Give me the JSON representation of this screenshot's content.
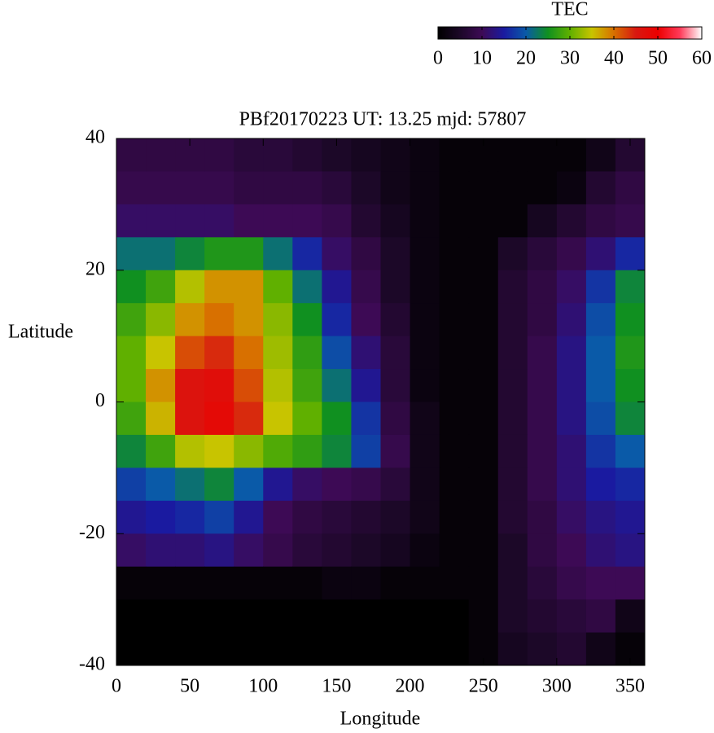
{
  "chart_data": {
    "type": "heatmap",
    "title": "PBf20170223  UT: 13.25  mjd: 57807",
    "xlabel": "Longitude",
    "ylabel": "Latitude",
    "colorbar_label": "TEC",
    "xlim": [
      0,
      360
    ],
    "ylim": [
      -40,
      40
    ],
    "xticks": [
      0,
      50,
      100,
      150,
      200,
      250,
      300,
      350
    ],
    "yticks": [
      -40,
      -20,
      0,
      20,
      40
    ],
    "zlim": [
      0,
      60
    ],
    "zticks": [
      0,
      10,
      20,
      30,
      40,
      50,
      60
    ],
    "colorscale": [
      "#000000",
      "#1c0828",
      "#3d0a55",
      "#1a1aa0",
      "#0a5aa8",
      "#109020",
      "#60b000",
      "#c8c400",
      "#d87000",
      "#d81810",
      "#ec0000",
      "#ff3a58",
      "#ffffff"
    ],
    "x": [
      10,
      30,
      50,
      70,
      90,
      110,
      130,
      150,
      170,
      190,
      210,
      230,
      250,
      270,
      290,
      310,
      330,
      350
    ],
    "y": [
      37.5,
      32.5,
      27.5,
      22.5,
      17.5,
      12.5,
      7.5,
      2.5,
      -2.5,
      -7.5,
      -12.5,
      -17.5,
      -22.5,
      -27.5,
      -32.5,
      -37.5
    ],
    "z": [
      [
        8,
        8,
        8,
        8,
        7,
        7,
        6,
        5,
        4,
        3,
        2,
        1,
        1,
        1,
        1,
        1,
        3,
        6
      ],
      [
        9,
        9,
        9,
        9,
        8,
        8,
        8,
        7,
        5,
        3,
        2,
        1,
        1,
        1,
        1,
        2,
        6,
        8
      ],
      [
        11,
        11,
        11,
        11,
        10,
        10,
        10,
        9,
        6,
        4,
        2,
        1,
        1,
        1,
        4,
        6,
        8,
        9
      ],
      [
        22,
        22,
        24,
        26,
        26,
        22,
        16,
        11,
        8,
        5,
        2,
        1,
        1,
        5,
        7,
        9,
        12,
        16
      ],
      [
        25,
        28,
        34,
        38,
        38,
        30,
        22,
        14,
        9,
        5,
        2,
        1,
        1,
        6,
        8,
        11,
        17,
        24
      ],
      [
        28,
        32,
        38,
        40,
        38,
        32,
        25,
        16,
        10,
        6,
        2,
        1,
        1,
        6,
        8,
        12,
        19,
        25
      ],
      [
        30,
        35,
        42,
        44,
        40,
        33,
        27,
        19,
        12,
        7,
        2,
        1,
        1,
        6,
        9,
        13,
        20,
        26
      ],
      [
        30,
        38,
        46,
        47,
        42,
        34,
        28,
        22,
        14,
        7,
        2,
        1,
        1,
        6,
        9,
        13,
        20,
        25
      ],
      [
        28,
        36,
        46,
        48,
        44,
        35,
        30,
        25,
        17,
        8,
        3,
        1,
        1,
        6,
        9,
        13,
        19,
        24
      ],
      [
        24,
        28,
        34,
        35,
        32,
        29,
        27,
        24,
        18,
        9,
        3,
        1,
        1,
        6,
        9,
        12,
        17,
        20
      ],
      [
        18,
        20,
        22,
        24,
        20,
        14,
        11,
        10,
        9,
        7,
        3,
        1,
        1,
        6,
        9,
        12,
        15,
        16
      ],
      [
        14,
        15,
        16,
        18,
        14,
        10,
        8,
        7,
        6,
        5,
        3,
        1,
        1,
        6,
        8,
        11,
        13,
        14
      ],
      [
        11,
        12,
        12,
        13,
        11,
        9,
        7,
        6,
        5,
        4,
        2,
        1,
        1,
        5,
        8,
        10,
        12,
        13
      ],
      [
        1,
        1,
        1,
        1,
        1,
        1,
        1,
        2,
        2,
        1,
        1,
        1,
        1,
        5,
        7,
        9,
        10,
        10
      ],
      [
        0,
        0,
        0,
        0,
        0,
        0,
        0,
        0,
        0,
        0,
        0,
        0,
        1,
        5,
        6,
        7,
        8,
        3
      ],
      [
        0,
        0,
        0,
        0,
        0,
        0,
        0,
        0,
        0,
        0,
        0,
        0,
        1,
        4,
        5,
        6,
        3,
        1
      ]
    ]
  }
}
